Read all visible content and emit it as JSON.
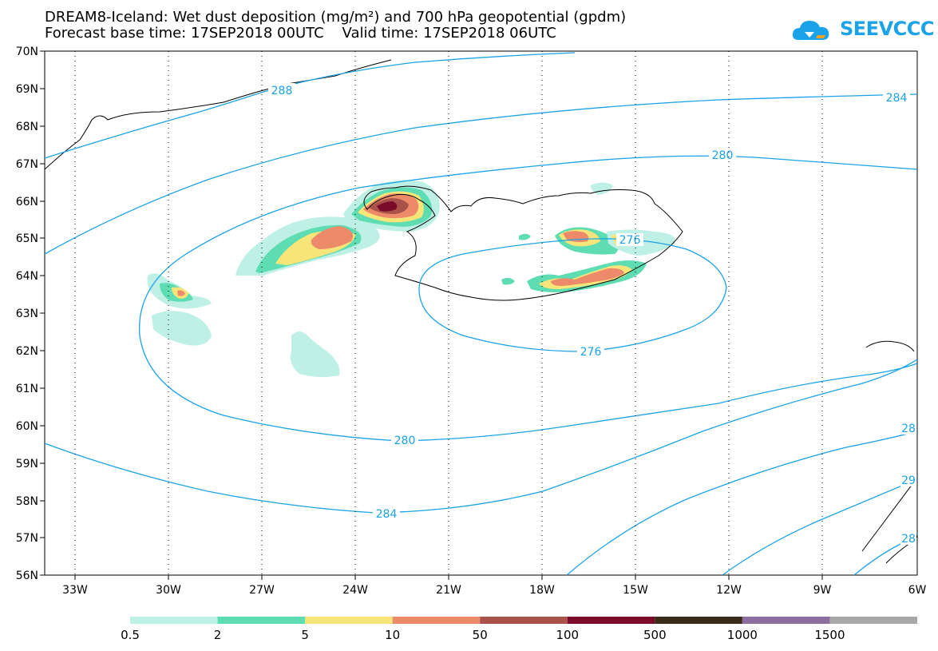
{
  "title": {
    "line1": "DREAM8-Iceland: Wet dust deposition (mg/m²) and 700 hPa geopotential (gpdm)",
    "line2": "Forecast base time: 17SEP2018 00UTC    Valid time: 17SEP2018 06UTC"
  },
  "logo": {
    "text": "SEEVCCC",
    "icon": "cloud-icon",
    "color": "#1aa3e8"
  },
  "map": {
    "lat_labels": [
      "70N",
      "69N",
      "68N",
      "67N",
      "66N",
      "65N",
      "64N",
      "63N",
      "62N",
      "61N",
      "60N",
      "59N",
      "58N",
      "57N",
      "56N"
    ],
    "lon_labels": [
      "33W",
      "30W",
      "27W",
      "24W",
      "21W",
      "18W",
      "15W",
      "12W",
      "9W",
      "6W"
    ],
    "contour_color": "#1aa3e8",
    "contour_labels": [
      "288",
      "284",
      "280",
      "276",
      "276",
      "280",
      "284",
      "28",
      "29",
      "28"
    ]
  },
  "legend": {
    "thresholds": [
      "0.5",
      "2",
      "5",
      "10",
      "50",
      "100",
      "500",
      "1000",
      "1500"
    ],
    "colors": [
      "#bff0e6",
      "#5edcb2",
      "#f7e57a",
      "#ec8a6a",
      "#a8524a",
      "#7a0c2a",
      "#3a2a1a",
      "#8c6ea0",
      "#a8a8a8"
    ]
  }
}
